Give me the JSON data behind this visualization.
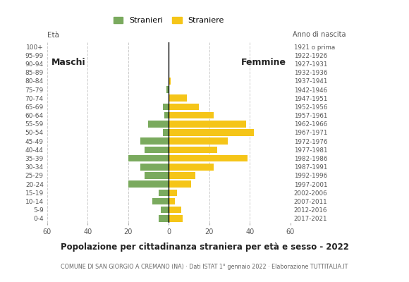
{
  "age_groups": [
    "100+",
    "95-99",
    "90-94",
    "85-89",
    "80-84",
    "75-79",
    "70-74",
    "65-69",
    "60-64",
    "55-59",
    "50-54",
    "45-49",
    "40-44",
    "35-39",
    "30-34",
    "25-29",
    "20-24",
    "15-19",
    "10-14",
    "5-9",
    "0-4"
  ],
  "birth_years": [
    "1921 o prima",
    "1922-1926",
    "1927-1931",
    "1932-1936",
    "1937-1941",
    "1942-1946",
    "1947-1951",
    "1952-1956",
    "1957-1961",
    "1962-1966",
    "1967-1971",
    "1972-1976",
    "1977-1981",
    "1982-1986",
    "1987-1991",
    "1992-1996",
    "1997-2001",
    "2002-2006",
    "2007-2011",
    "2012-2016",
    "2017-2021"
  ],
  "males": [
    0,
    0,
    0,
    0,
    0,
    1,
    0,
    3,
    2,
    10,
    3,
    14,
    12,
    20,
    14,
    12,
    20,
    5,
    8,
    4,
    5
  ],
  "females": [
    0,
    0,
    0,
    0,
    1,
    0,
    9,
    15,
    22,
    38,
    42,
    29,
    24,
    39,
    22,
    13,
    11,
    4,
    3,
    6,
    7
  ],
  "male_color": "#7aaa5e",
  "female_color": "#f5c518",
  "grid_color": "#cccccc",
  "title": "Popolazione per cittadinanza straniera per età e sesso - 2022",
  "subtitle": "COMUNE DI SAN GIORGIO A CREMANO (NA) · Dati ISTAT 1° gennaio 2022 · Elaborazione TUTTITALIA.IT",
  "label_eta": "Età",
  "label_anno": "Anno di nascita",
  "label_maschi": "Maschi",
  "label_femmine": "Femmine",
  "legend_males": "Stranieri",
  "legend_females": "Straniere",
  "xlim": 60
}
